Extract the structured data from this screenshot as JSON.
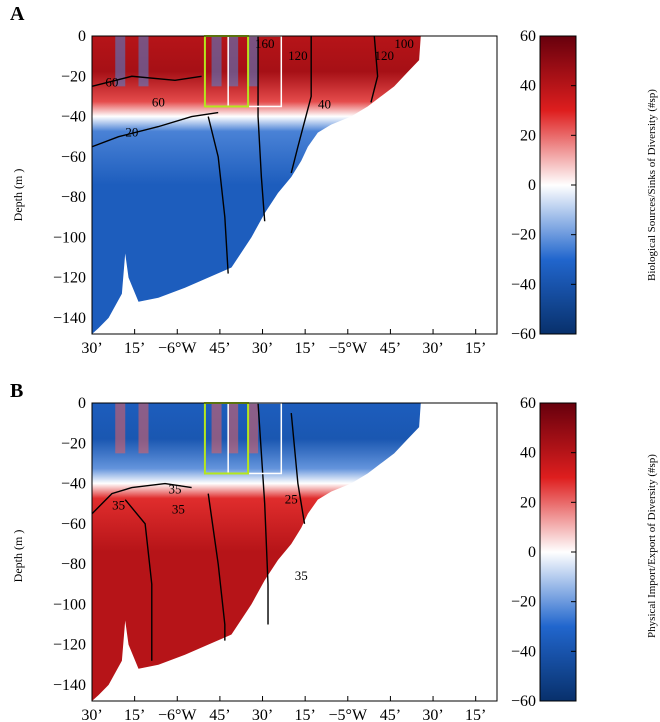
{
  "chart_data": [
    {
      "type": "heatmap",
      "panel_label": "A",
      "ylabel": "Depth (m )",
      "yticks": [
        0,
        -20,
        -40,
        -60,
        -80,
        -100,
        -120,
        -140
      ],
      "xticks": [
        "30’",
        "15’",
        "−6°W",
        "45’",
        "30’",
        "15’",
        "−5°W",
        "45’",
        "30’",
        "15’"
      ],
      "colorbar_label": "Biological Sources/Sinks of Diversity (#sp)",
      "colorbar_ticks": [
        60,
        40,
        20,
        0,
        -20,
        -40,
        -60
      ],
      "clim": [
        -60,
        60
      ],
      "surface_value": 40,
      "deep_value": -35,
      "contour_labels": [
        {
          "text": "60",
          "lon": 0.06,
          "depth": -25
        },
        {
          "text": "60",
          "lon": 0.2,
          "depth": -35
        },
        {
          "text": "20",
          "lon": 0.12,
          "depth": -50
        },
        {
          "text": "160",
          "lon": 0.52,
          "depth": -6
        },
        {
          "text": "120",
          "lon": 0.62,
          "depth": -12
        },
        {
          "text": "120",
          "lon": 0.88,
          "depth": -12
        },
        {
          "text": "100",
          "lon": 0.94,
          "depth": -6
        },
        {
          "text": "40",
          "lon": 0.7,
          "depth": -36
        }
      ]
    },
    {
      "type": "heatmap",
      "panel_label": "B",
      "ylabel": "Depth (m )",
      "yticks": [
        0,
        -20,
        -40,
        -60,
        -80,
        -100,
        -120,
        -140
      ],
      "xticks": [
        "30’",
        "15’",
        "−6°W",
        "45’",
        "30’",
        "15’",
        "−5°W",
        "45’",
        "30’",
        "15’"
      ],
      "colorbar_label": "Physical Import/Export of Diversity (#sp)",
      "colorbar_ticks": [
        60,
        40,
        20,
        0,
        -20,
        -40,
        -60
      ],
      "clim": [
        -60,
        60
      ],
      "surface_value": -35,
      "deep_value": 40,
      "contour_labels": [
        {
          "text": "35",
          "lon": 0.08,
          "depth": -53
        },
        {
          "text": "35",
          "lon": 0.25,
          "depth": -45
        },
        {
          "text": "35",
          "lon": 0.26,
          "depth": -55
        },
        {
          "text": "35",
          "lon": 0.63,
          "depth": -88
        },
        {
          "text": "25",
          "lon": 0.6,
          "depth": -50
        }
      ]
    }
  ],
  "colors": {
    "low": "#08306b",
    "mid": "#ffffff",
    "high": "#67000d",
    "green_box": "#b5e61d",
    "white_box": "#ffffff"
  }
}
